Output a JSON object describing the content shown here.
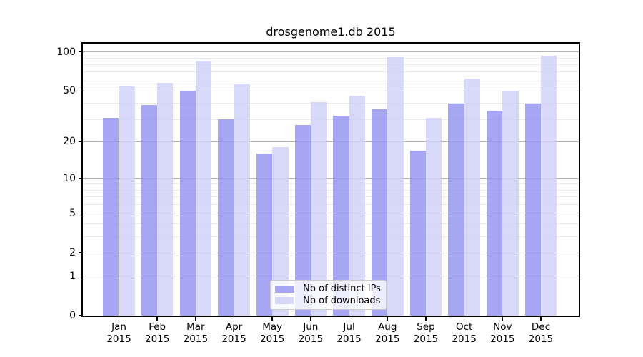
{
  "chart_data": {
    "type": "bar",
    "title": "drosgenome1.db 2015",
    "categories": [
      "Jan",
      "Feb",
      "Mar",
      "Apr",
      "May",
      "Jun",
      "Jul",
      "Aug",
      "Sep",
      "Oct",
      "Nov",
      "Dec"
    ],
    "year_label": "2015",
    "series": [
      {
        "name": "Nb of distinct IPs",
        "color": "#9393f0",
        "values": [
          31,
          39,
          50,
          30,
          16,
          27,
          32,
          36,
          17,
          40,
          35,
          40
        ]
      },
      {
        "name": "Nb of downloads",
        "color": "#cfcff6",
        "values": [
          55,
          58,
          86,
          57,
          18,
          41,
          46,
          91,
          31,
          62,
          50,
          94
        ]
      }
    ],
    "bar_opacity": 0.82,
    "yscale": "log1p",
    "ylim": [
      0,
      116
    ],
    "yticks": [
      0,
      1,
      2,
      5,
      10,
      20,
      50,
      100
    ],
    "minor_yticks": [
      3,
      4,
      6,
      7,
      8,
      9,
      30,
      40,
      60,
      70,
      80,
      90
    ],
    "grid": true,
    "legend_position": "lower-center",
    "axis_color": "#000000",
    "grid_major_color": "#b4b4b4",
    "grid_minor_color": "#eaeaea",
    "background_color": "#ffffff"
  }
}
